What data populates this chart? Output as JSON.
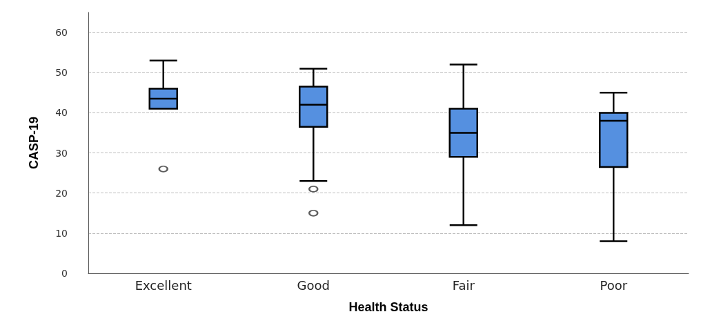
{
  "chart_data": {
    "type": "box",
    "xlabel": "Health Status",
    "ylabel": "CASP-19",
    "categories": [
      "Excellent",
      "Good",
      "Fair",
      "Poor"
    ],
    "color": "#5590e0",
    "boxes": [
      {
        "low": 41,
        "q1": 41,
        "median": 43.5,
        "q3": 46,
        "high": 53,
        "outliers": [
          26
        ]
      },
      {
        "low": 23,
        "q1": 36.5,
        "median": 42,
        "q3": 46.5,
        "high": 51,
        "outliers": [
          21,
          15
        ]
      },
      {
        "low": 12,
        "q1": 29,
        "median": 35,
        "q3": 41,
        "high": 52
      },
      {
        "low": 8,
        "q1": 26.5,
        "median": 38,
        "q3": 40,
        "high": 45
      }
    ],
    "ylim": [
      0,
      65
    ],
    "yticks": [
      0,
      10,
      20,
      30,
      40,
      50,
      60
    ],
    "grid": "y"
  }
}
